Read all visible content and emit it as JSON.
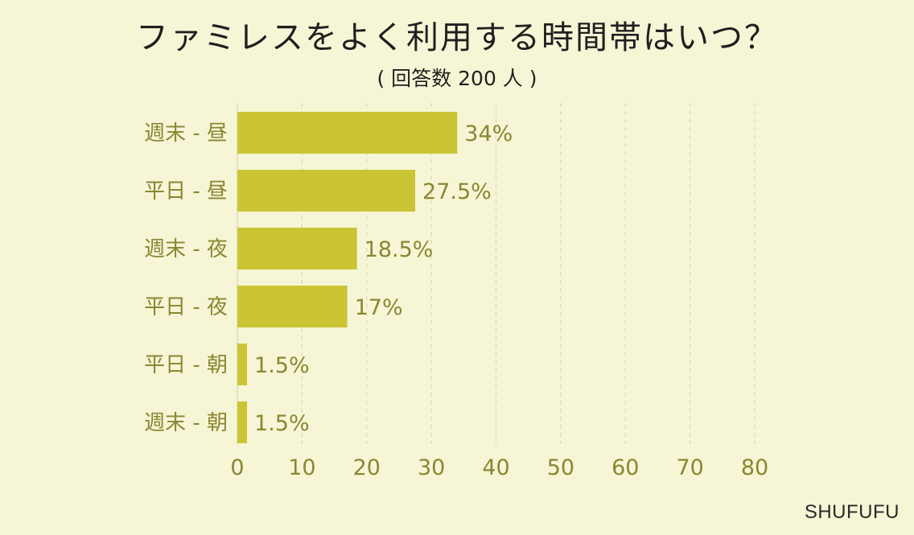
{
  "chart_data": {
    "type": "bar",
    "orientation": "horizontal",
    "title": "ファミレスをよく利用する時間帯はいつ？",
    "subtitle": "( 回答数 200 人 )",
    "categories": [
      "週末 - 昼",
      "平日 - 昼",
      "週末 - 夜",
      "平日 - 夜",
      "平日 - 朝",
      "週末 - 朝"
    ],
    "values": [
      34,
      27.5,
      18.5,
      17,
      1.5,
      1.5
    ],
    "value_labels": [
      "34%",
      "27.5%",
      "18.5%",
      "17%",
      "1.5%",
      "1.5%"
    ],
    "xlim": [
      0,
      80
    ],
    "xticks": [
      0,
      10,
      20,
      30,
      40,
      50,
      60,
      70,
      80
    ],
    "xtick_labels": [
      "0",
      "10",
      "20",
      "30",
      "40",
      "50",
      "60",
      "70",
      "80"
    ],
    "grid": "vertical-dashed",
    "colors": {
      "bar": "#cbc536",
      "label": "#8a8632",
      "grid": "#d9d9b8",
      "background": "#f6f6d6"
    }
  },
  "watermark": "SHUFUFU"
}
